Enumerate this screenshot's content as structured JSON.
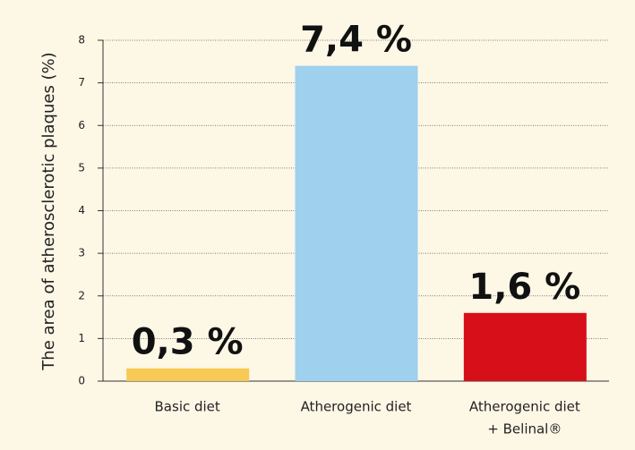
{
  "chart_data": {
    "type": "bar",
    "y_label": "The area of atherosclerotic plaques (%)",
    "categories": [
      [
        "Basic diet"
      ],
      [
        "Atherogenic diet"
      ],
      [
        "Atherogenic diet",
        "+ Belinal®"
      ]
    ],
    "values": [
      0.3,
      7.4,
      1.6
    ],
    "value_labels": [
      "0,3 %",
      "7,4 %",
      "1,6 %"
    ],
    "colors": [
      "#f7c955",
      "#9fd0ee",
      "#d70f18"
    ],
    "ylim": [
      0,
      8
    ],
    "yticks": [
      0,
      1,
      2,
      3,
      4,
      5,
      6,
      7,
      8
    ],
    "grid": true
  }
}
